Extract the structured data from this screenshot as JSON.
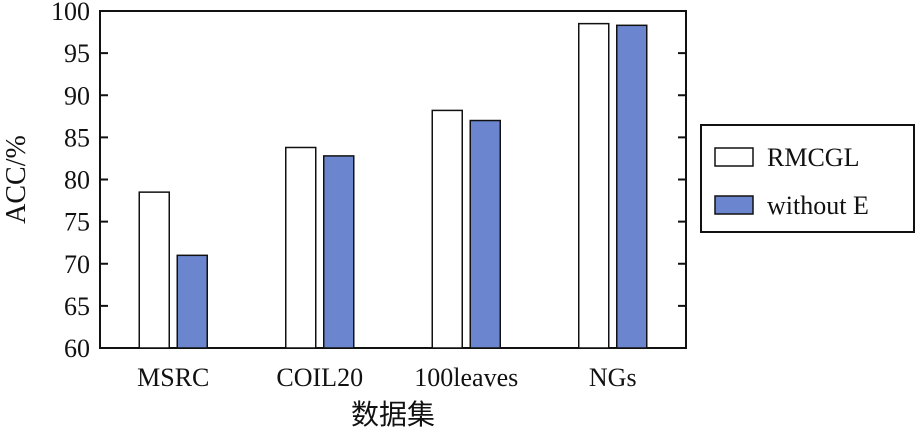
{
  "chart_data": {
    "type": "bar",
    "categories": [
      "MSRC",
      "COIL20",
      "100leaves",
      "NGs"
    ],
    "series": [
      {
        "name": "RMCGL",
        "values": [
          78.5,
          83.8,
          88.2,
          98.5
        ],
        "color": "#ffffff"
      },
      {
        "name": "without E",
        "values": [
          71.0,
          82.8,
          87.0,
          98.3
        ],
        "color": "#6b86cf"
      }
    ],
    "xlabel": "数据集",
    "ylabel": "ACC/%",
    "ylim": [
      60,
      100
    ],
    "yticks": [
      60,
      65,
      70,
      75,
      80,
      85,
      90,
      95,
      100
    ],
    "grid": false,
    "legend_position": "right"
  }
}
